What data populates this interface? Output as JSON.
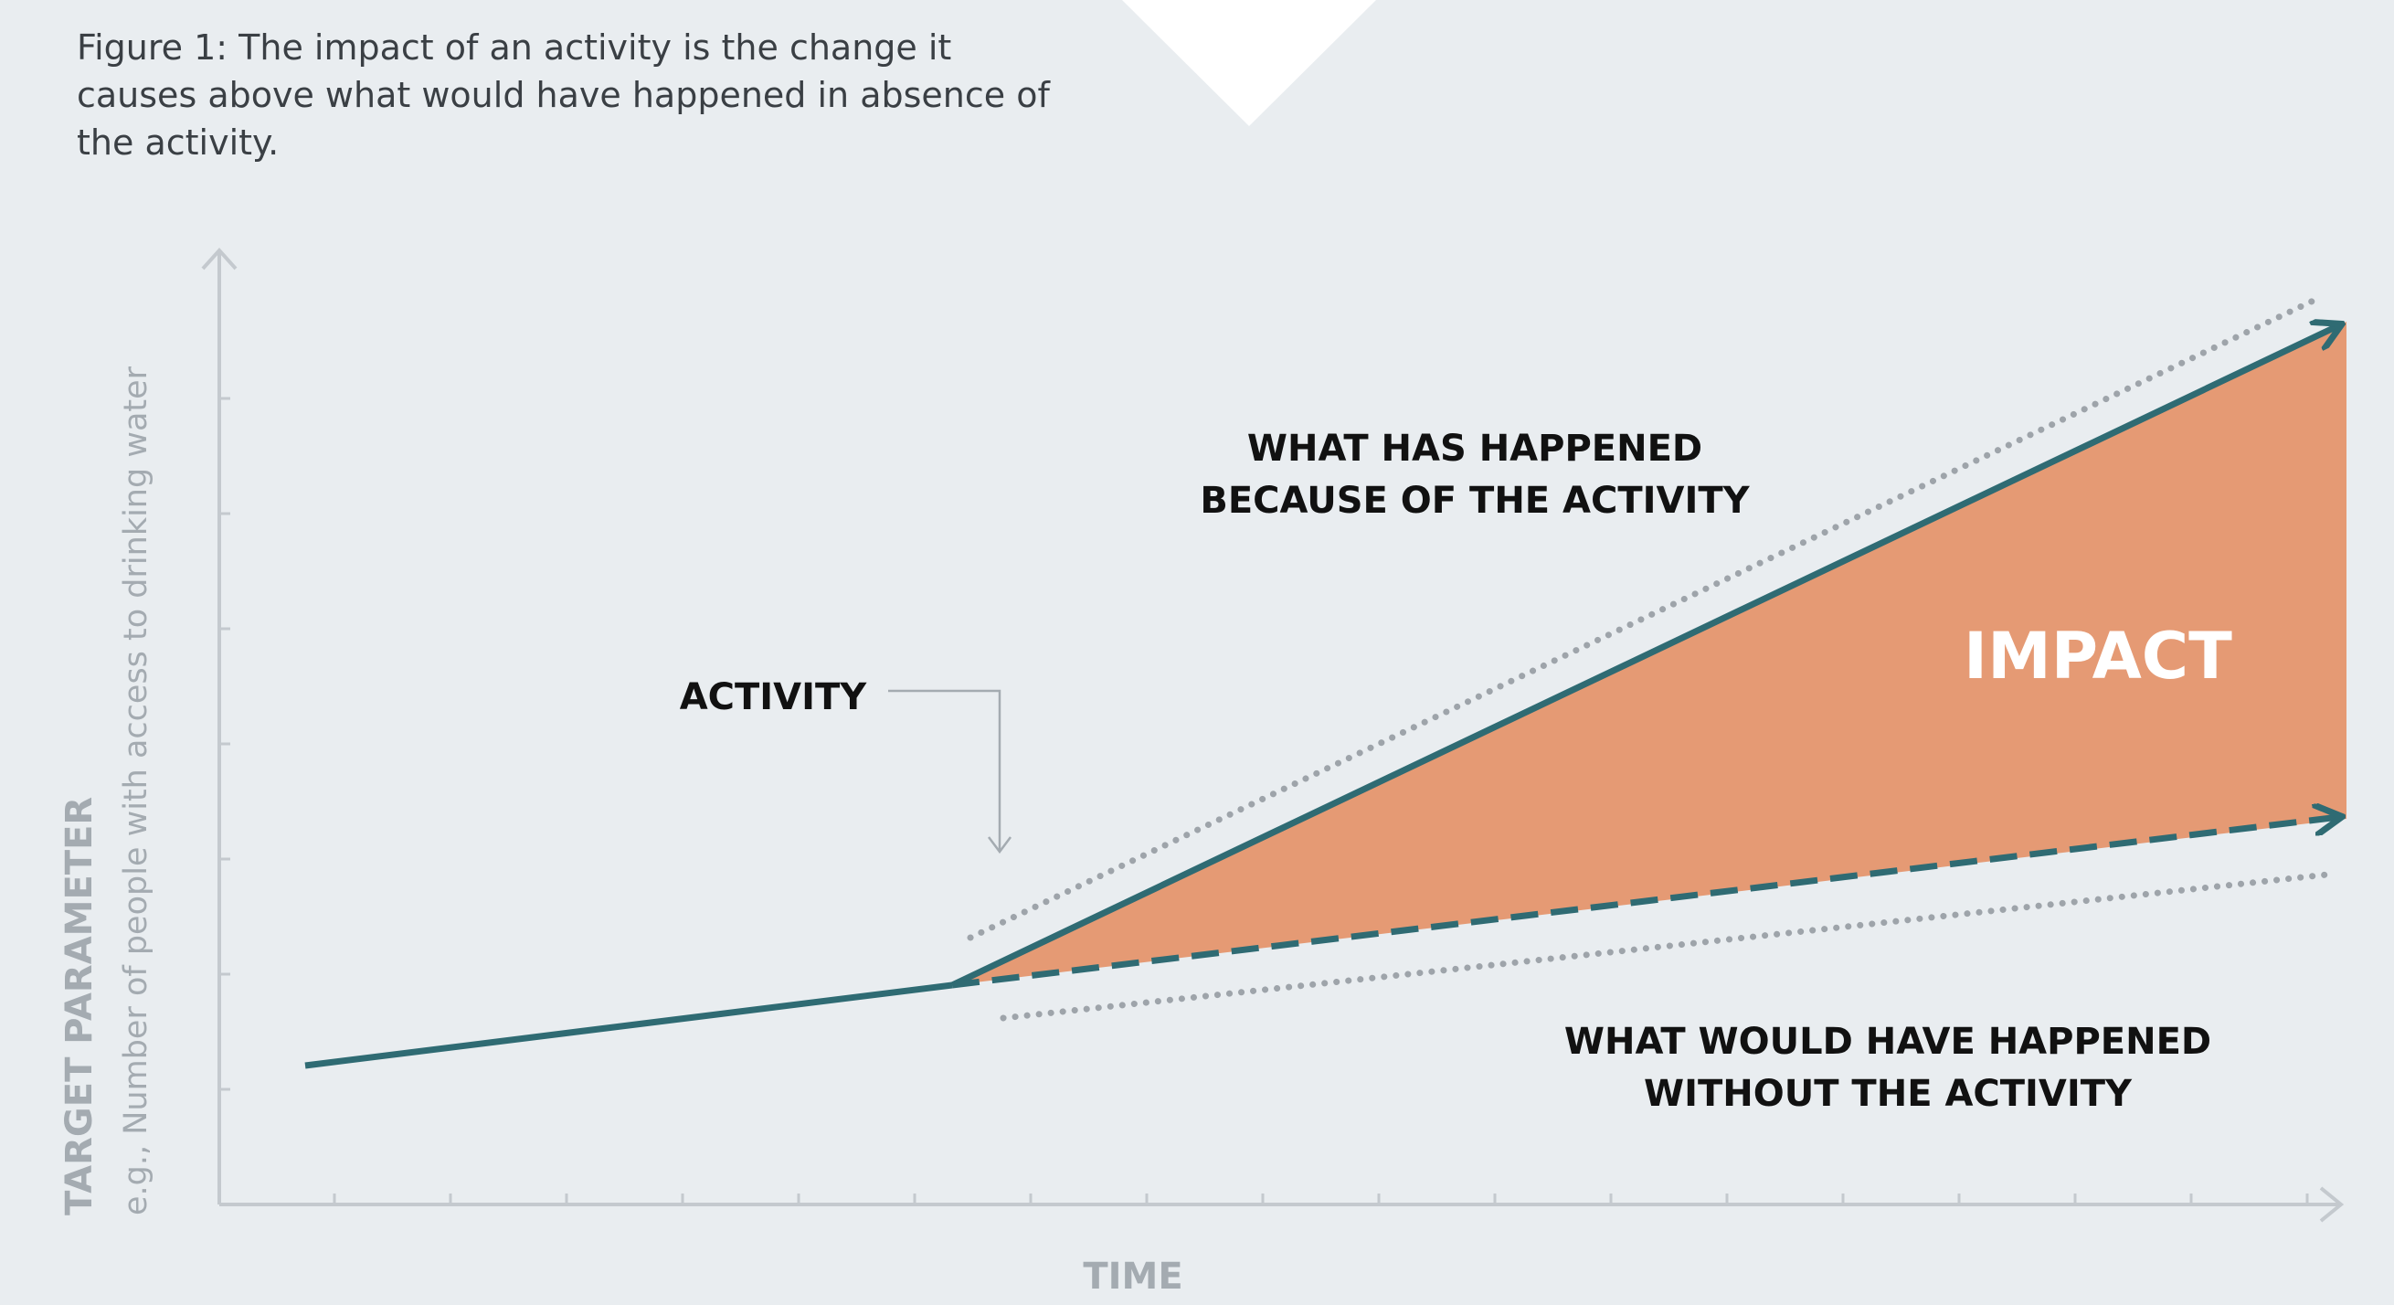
{
  "caption": "Figure 1: The impact of an activity is the change it causes above what would have happened in absence of the activity.",
  "labels": {
    "activity": "ACTIVITY",
    "happened_line1": "WHAT HAS HAPPENED",
    "happened_line2": "BECAUSE OF THE ACTIVITY",
    "without_line1": "WHAT WOULD HAVE HAPPENED",
    "without_line2": "WITHOUT THE ACTIVITY",
    "impact": "IMPACT"
  },
  "axes": {
    "y_title": "TARGET PARAMETER",
    "y_subtitle": "e.g., Number of people with access to drinking water",
    "x_title": "TIME"
  },
  "colors": {
    "background": "#e9edf0",
    "line": "#2f6b73",
    "impact_fill": "#e59a74",
    "axis": "#c4c9ce",
    "dotted": "#9ea4aa"
  }
}
